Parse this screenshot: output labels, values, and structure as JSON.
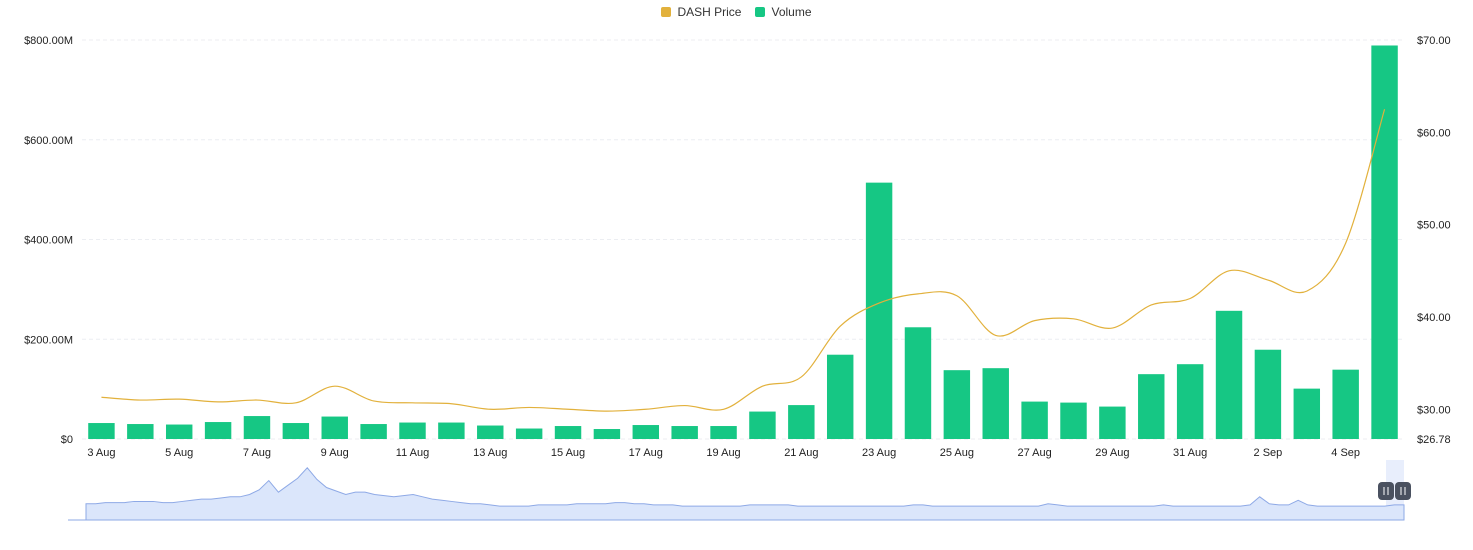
{
  "colors": {
    "price": "#e2b13c",
    "volume": "#16c784",
    "grid": "#eceef2",
    "navigator_fill": "#dbe6fb",
    "navigator_line": "#8ea9e6",
    "navigator_select": "#e8eefc"
  },
  "legend": [
    {
      "label": "DASH Price",
      "color": "#e2b13c"
    },
    {
      "label": "Volume",
      "color": "#16c784"
    }
  ],
  "chart_data": {
    "type": "bar",
    "x": [
      "3 Aug",
      "4 Aug",
      "5 Aug",
      "6 Aug",
      "7 Aug",
      "8 Aug",
      "9 Aug",
      "10 Aug",
      "11 Aug",
      "12 Aug",
      "13 Aug",
      "14 Aug",
      "15 Aug",
      "16 Aug",
      "17 Aug",
      "18 Aug",
      "19 Aug",
      "20 Aug",
      "21 Aug",
      "22 Aug",
      "23 Aug",
      "24 Aug",
      "25 Aug",
      "26 Aug",
      "27 Aug",
      "28 Aug",
      "29 Aug",
      "30 Aug",
      "31 Aug",
      "1 Sep",
      "2 Sep",
      "3 Sep",
      "4 Sep",
      "5 Sep"
    ],
    "x_tick_labels": [
      "3 Aug",
      "5 Aug",
      "7 Aug",
      "9 Aug",
      "11 Aug",
      "13 Aug",
      "15 Aug",
      "17 Aug",
      "19 Aug",
      "21 Aug",
      "23 Aug",
      "25 Aug",
      "27 Aug",
      "29 Aug",
      "31 Aug",
      "2 Sep",
      "4 Sep"
    ],
    "series": [
      {
        "name": "Volume",
        "type": "bar",
        "axis": "left",
        "values": [
          32,
          30,
          29,
          34,
          46,
          32,
          45,
          30,
          33,
          33,
          27,
          21,
          26,
          20,
          28,
          26,
          26,
          55,
          68,
          169,
          514,
          224,
          138,
          142,
          75,
          73,
          65,
          130,
          150,
          257,
          179,
          101,
          139,
          789
        ]
      },
      {
        "name": "DASH Price",
        "type": "line",
        "axis": "right",
        "values": [
          31.3,
          31.0,
          31.1,
          30.8,
          31.0,
          30.7,
          32.5,
          30.9,
          30.7,
          30.6,
          30.0,
          30.2,
          30.0,
          29.8,
          30.0,
          30.4,
          30.0,
          32.5,
          33.5,
          39.0,
          41.5,
          42.5,
          42.3,
          38.0,
          39.6,
          39.8,
          38.8,
          41.3,
          42.0,
          45.0,
          44.0,
          42.8,
          48.0,
          62.5
        ]
      }
    ],
    "y_left": {
      "min": 0,
      "max": 800,
      "ticks": [
        0,
        200,
        400,
        600,
        800
      ],
      "tick_labels": [
        "$0",
        "$200.00M",
        "$400.00M",
        "$600.00M",
        "$800.00M"
      ]
    },
    "y_right": {
      "min": 26.78,
      "max": 70,
      "ticks": [
        26.78,
        30,
        40,
        50,
        60,
        70
      ],
      "tick_labels": [
        "$26.78",
        "$30.00",
        "$40.00",
        "$50.00",
        "$60.00",
        "$70.00"
      ]
    },
    "grid": true,
    "legend_position": "top-center",
    "navigator": {
      "values": [
        14,
        14,
        15,
        15,
        15,
        16,
        16,
        16,
        15,
        15,
        16,
        17,
        18,
        18,
        19,
        20,
        20,
        22,
        26,
        34,
        24,
        30,
        36,
        45,
        35,
        28,
        25,
        22,
        24,
        24,
        22,
        21,
        20,
        21,
        22,
        20,
        18,
        17,
        16,
        15,
        14,
        14,
        13,
        12,
        12,
        12,
        12,
        13,
        13,
        13,
        13,
        14,
        14,
        14,
        14,
        15,
        15,
        14,
        14,
        13,
        13,
        13,
        12,
        12,
        12,
        12,
        12,
        12,
        12,
        13,
        13,
        13,
        13,
        13,
        12,
        12,
        12,
        12,
        12,
        12,
        12,
        12,
        12,
        12,
        12,
        12,
        13,
        13,
        12,
        12,
        12,
        12,
        12,
        12,
        12,
        12,
        12,
        12,
        12,
        12,
        14,
        13,
        12,
        12,
        12,
        12,
        12,
        12,
        12,
        12,
        12,
        12,
        13,
        12,
        12,
        12,
        12,
        12,
        12,
        12,
        12,
        13,
        20,
        14,
        13,
        13,
        17,
        13,
        12,
        12,
        12,
        12,
        12,
        12,
        12,
        12,
        13,
        13
      ]
    }
  }
}
